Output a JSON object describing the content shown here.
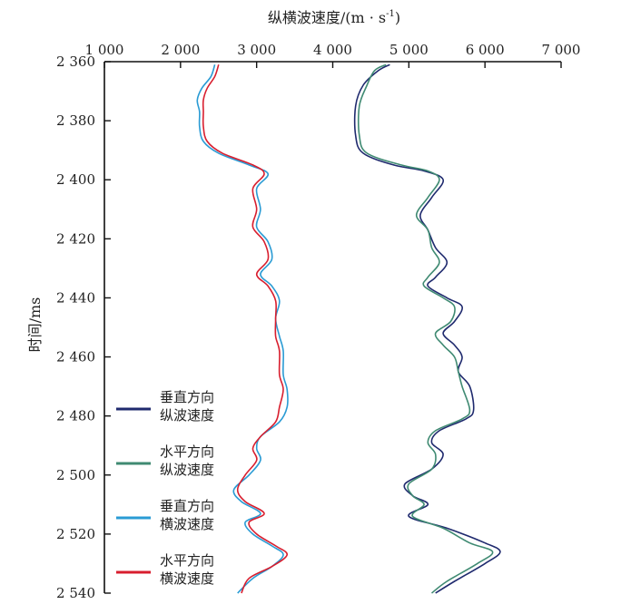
{
  "chart_data": {
    "type": "line",
    "title": "",
    "xlabel": "纵横波速度/(m · s",
    "xlabel_sup": "-1",
    "xlabel_suffix": ")",
    "ylabel": "时间/ms",
    "xlim": [
      1000,
      7000
    ],
    "ylim": [
      2360,
      2540
    ],
    "y_inverted": true,
    "x_axis_position": "top",
    "grid": false,
    "legend_position": "bottom-left",
    "xticks": [
      1000,
      2000,
      3000,
      4000,
      5000,
      6000,
      7000
    ],
    "xtick_labels": [
      "1 000",
      "2 000",
      "3 000",
      "4 000",
      "5 000",
      "6 000",
      "7 000"
    ],
    "yticks": [
      2360,
      2380,
      2400,
      2420,
      2440,
      2460,
      2480,
      2500,
      2520,
      2540
    ],
    "ytick_labels": [
      "2 360",
      "2 380",
      "2 400",
      "2 420",
      "2 440",
      "2 460",
      "2 480",
      "2 500",
      "2 520",
      "2 540"
    ],
    "series": [
      {
        "name": "垂直方向\n纵波速度",
        "legend_lines": [
          "垂直方向",
          "纵波速度"
        ],
        "color": "#1f2a6e",
        "points": [
          [
            4750,
            2361
          ],
          [
            4600,
            2363
          ],
          [
            4400,
            2368
          ],
          [
            4300,
            2375
          ],
          [
            4300,
            2385
          ],
          [
            4400,
            2391
          ],
          [
            4800,
            2395
          ],
          [
            5200,
            2397
          ],
          [
            5450,
            2400
          ],
          [
            5300,
            2406
          ],
          [
            5150,
            2412
          ],
          [
            5250,
            2417
          ],
          [
            5350,
            2423
          ],
          [
            5500,
            2428
          ],
          [
            5350,
            2433
          ],
          [
            5250,
            2436
          ],
          [
            5500,
            2440
          ],
          [
            5700,
            2443
          ],
          [
            5600,
            2448
          ],
          [
            5450,
            2452
          ],
          [
            5600,
            2456
          ],
          [
            5700,
            2460
          ],
          [
            5650,
            2465
          ],
          [
            5800,
            2470
          ],
          [
            5850,
            2478
          ],
          [
            5750,
            2481
          ],
          [
            5400,
            2485
          ],
          [
            5300,
            2489
          ],
          [
            5450,
            2493
          ],
          [
            5300,
            2498
          ],
          [
            4950,
            2503
          ],
          [
            5050,
            2507
          ],
          [
            5250,
            2510
          ],
          [
            5000,
            2514
          ],
          [
            5500,
            2518
          ],
          [
            6000,
            2523
          ],
          [
            6200,
            2526
          ],
          [
            6000,
            2530
          ],
          [
            5600,
            2536
          ],
          [
            5350,
            2540
          ]
        ]
      },
      {
        "name": "水平方向\n纵波速度",
        "legend_lines": [
          "水平方向",
          "纵波速度"
        ],
        "color": "#3f8a72",
        "points": [
          [
            4700,
            2361
          ],
          [
            4550,
            2363
          ],
          [
            4450,
            2368
          ],
          [
            4350,
            2375
          ],
          [
            4350,
            2385
          ],
          [
            4450,
            2391
          ],
          [
            4900,
            2395
          ],
          [
            5250,
            2397
          ],
          [
            5400,
            2400
          ],
          [
            5250,
            2406
          ],
          [
            5100,
            2412
          ],
          [
            5250,
            2417
          ],
          [
            5300,
            2423
          ],
          [
            5400,
            2428
          ],
          [
            5250,
            2433
          ],
          [
            5200,
            2436
          ],
          [
            5450,
            2440
          ],
          [
            5600,
            2443
          ],
          [
            5550,
            2448
          ],
          [
            5350,
            2452
          ],
          [
            5450,
            2456
          ],
          [
            5600,
            2460
          ],
          [
            5650,
            2465
          ],
          [
            5700,
            2470
          ],
          [
            5800,
            2478
          ],
          [
            5700,
            2481
          ],
          [
            5350,
            2485
          ],
          [
            5250,
            2489
          ],
          [
            5350,
            2493
          ],
          [
            5300,
            2498
          ],
          [
            5000,
            2503
          ],
          [
            5050,
            2507
          ],
          [
            5200,
            2510
          ],
          [
            5050,
            2514
          ],
          [
            5450,
            2518
          ],
          [
            5800,
            2523
          ],
          [
            6100,
            2526
          ],
          [
            5900,
            2530
          ],
          [
            5500,
            2536
          ],
          [
            5300,
            2540
          ]
        ]
      },
      {
        "name": "垂直方向\n横波速度",
        "legend_lines": [
          "垂直方向",
          "横波速度"
        ],
        "color": "#2a9bd4",
        "points": [
          [
            2450,
            2361
          ],
          [
            2400,
            2365
          ],
          [
            2280,
            2369
          ],
          [
            2220,
            2373
          ],
          [
            2250,
            2377
          ],
          [
            2250,
            2382
          ],
          [
            2300,
            2387
          ],
          [
            2500,
            2391
          ],
          [
            2900,
            2395
          ],
          [
            3150,
            2398
          ],
          [
            3000,
            2403
          ],
          [
            3050,
            2410
          ],
          [
            3000,
            2416
          ],
          [
            3150,
            2421
          ],
          [
            3200,
            2427
          ],
          [
            3050,
            2432
          ],
          [
            3200,
            2436
          ],
          [
            3300,
            2441
          ],
          [
            3250,
            2447
          ],
          [
            3300,
            2453
          ],
          [
            3350,
            2458
          ],
          [
            3350,
            2466
          ],
          [
            3400,
            2471
          ],
          [
            3400,
            2477
          ],
          [
            3300,
            2482
          ],
          [
            3050,
            2487
          ],
          [
            3000,
            2491
          ],
          [
            3050,
            2495
          ],
          [
            2900,
            2500
          ],
          [
            2700,
            2505
          ],
          [
            2800,
            2509
          ],
          [
            3050,
            2513
          ],
          [
            2850,
            2516
          ],
          [
            2950,
            2520
          ],
          [
            3200,
            2524
          ],
          [
            3350,
            2527
          ],
          [
            3200,
            2531
          ],
          [
            2950,
            2535
          ],
          [
            2750,
            2540
          ]
        ]
      },
      {
        "name": "水平方向\n横波速度",
        "legend_lines": [
          "水平方向",
          "横波速度"
        ],
        "color": "#d81e2e",
        "points": [
          [
            2500,
            2361
          ],
          [
            2450,
            2365
          ],
          [
            2350,
            2369
          ],
          [
            2300,
            2373
          ],
          [
            2300,
            2377
          ],
          [
            2300,
            2382
          ],
          [
            2350,
            2387
          ],
          [
            2550,
            2391
          ],
          [
            2950,
            2395
          ],
          [
            3100,
            2398
          ],
          [
            2950,
            2403
          ],
          [
            3000,
            2410
          ],
          [
            2950,
            2416
          ],
          [
            3100,
            2421
          ],
          [
            3150,
            2427
          ],
          [
            3000,
            2432
          ],
          [
            3150,
            2436
          ],
          [
            3250,
            2441
          ],
          [
            3250,
            2447
          ],
          [
            3250,
            2453
          ],
          [
            3300,
            2458
          ],
          [
            3300,
            2466
          ],
          [
            3350,
            2471
          ],
          [
            3300,
            2477
          ],
          [
            3250,
            2482
          ],
          [
            3050,
            2487
          ],
          [
            2950,
            2491
          ],
          [
            3000,
            2495
          ],
          [
            2850,
            2500
          ],
          [
            2750,
            2505
          ],
          [
            2850,
            2509
          ],
          [
            3100,
            2513
          ],
          [
            2900,
            2516
          ],
          [
            3000,
            2520
          ],
          [
            3250,
            2524
          ],
          [
            3400,
            2527
          ],
          [
            3200,
            2531
          ],
          [
            2900,
            2535
          ],
          [
            2800,
            2540
          ]
        ]
      }
    ]
  }
}
